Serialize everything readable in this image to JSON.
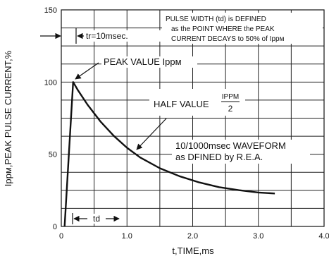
{
  "chart_data": {
    "type": "line",
    "title": "",
    "xlabel": "t,TIME,ms",
    "ylabel": "Ippм,PEAK PULSE CURRENT,%",
    "xlim": [
      0,
      4.0
    ],
    "ylim": [
      0,
      150
    ],
    "x_ticks": [
      "0",
      "1.0",
      "2.0",
      "3.0",
      "4.0"
    ],
    "y_ticks": [
      "0",
      "50",
      "100",
      "150"
    ],
    "grid": true,
    "series": [
      {
        "x": [
          0.05,
          0.18,
          0.25,
          0.4,
          0.6,
          0.8,
          1.0,
          1.2,
          1.5,
          1.8,
          2.1,
          2.4,
          2.7,
          3.0,
          3.25
        ],
        "y": [
          0,
          100,
          94.6,
          84.3,
          72.5,
          62.7,
          54.5,
          47.8,
          40.3,
          34.8,
          30.5,
          27.2,
          25.1,
          23.5,
          22.8
        ]
      }
    ],
    "annotations": {
      "tr": "tr=10msec.",
      "pulse_width": [
        "PULSE WIDTH (td) is DEFINED",
        "as the POINT WHERE the PEAK",
        "CURRENT DECAYS to 50% of Ippм"
      ],
      "peak": "PEAK VALUE Ippм",
      "half_value": "HALF VALUE",
      "fraction_num": "IPPM",
      "fraction_den": "2",
      "waveform": [
        "10/1000msec WAVEFORM",
        "as DFINED by R.E.A."
      ],
      "td": "td"
    }
  }
}
